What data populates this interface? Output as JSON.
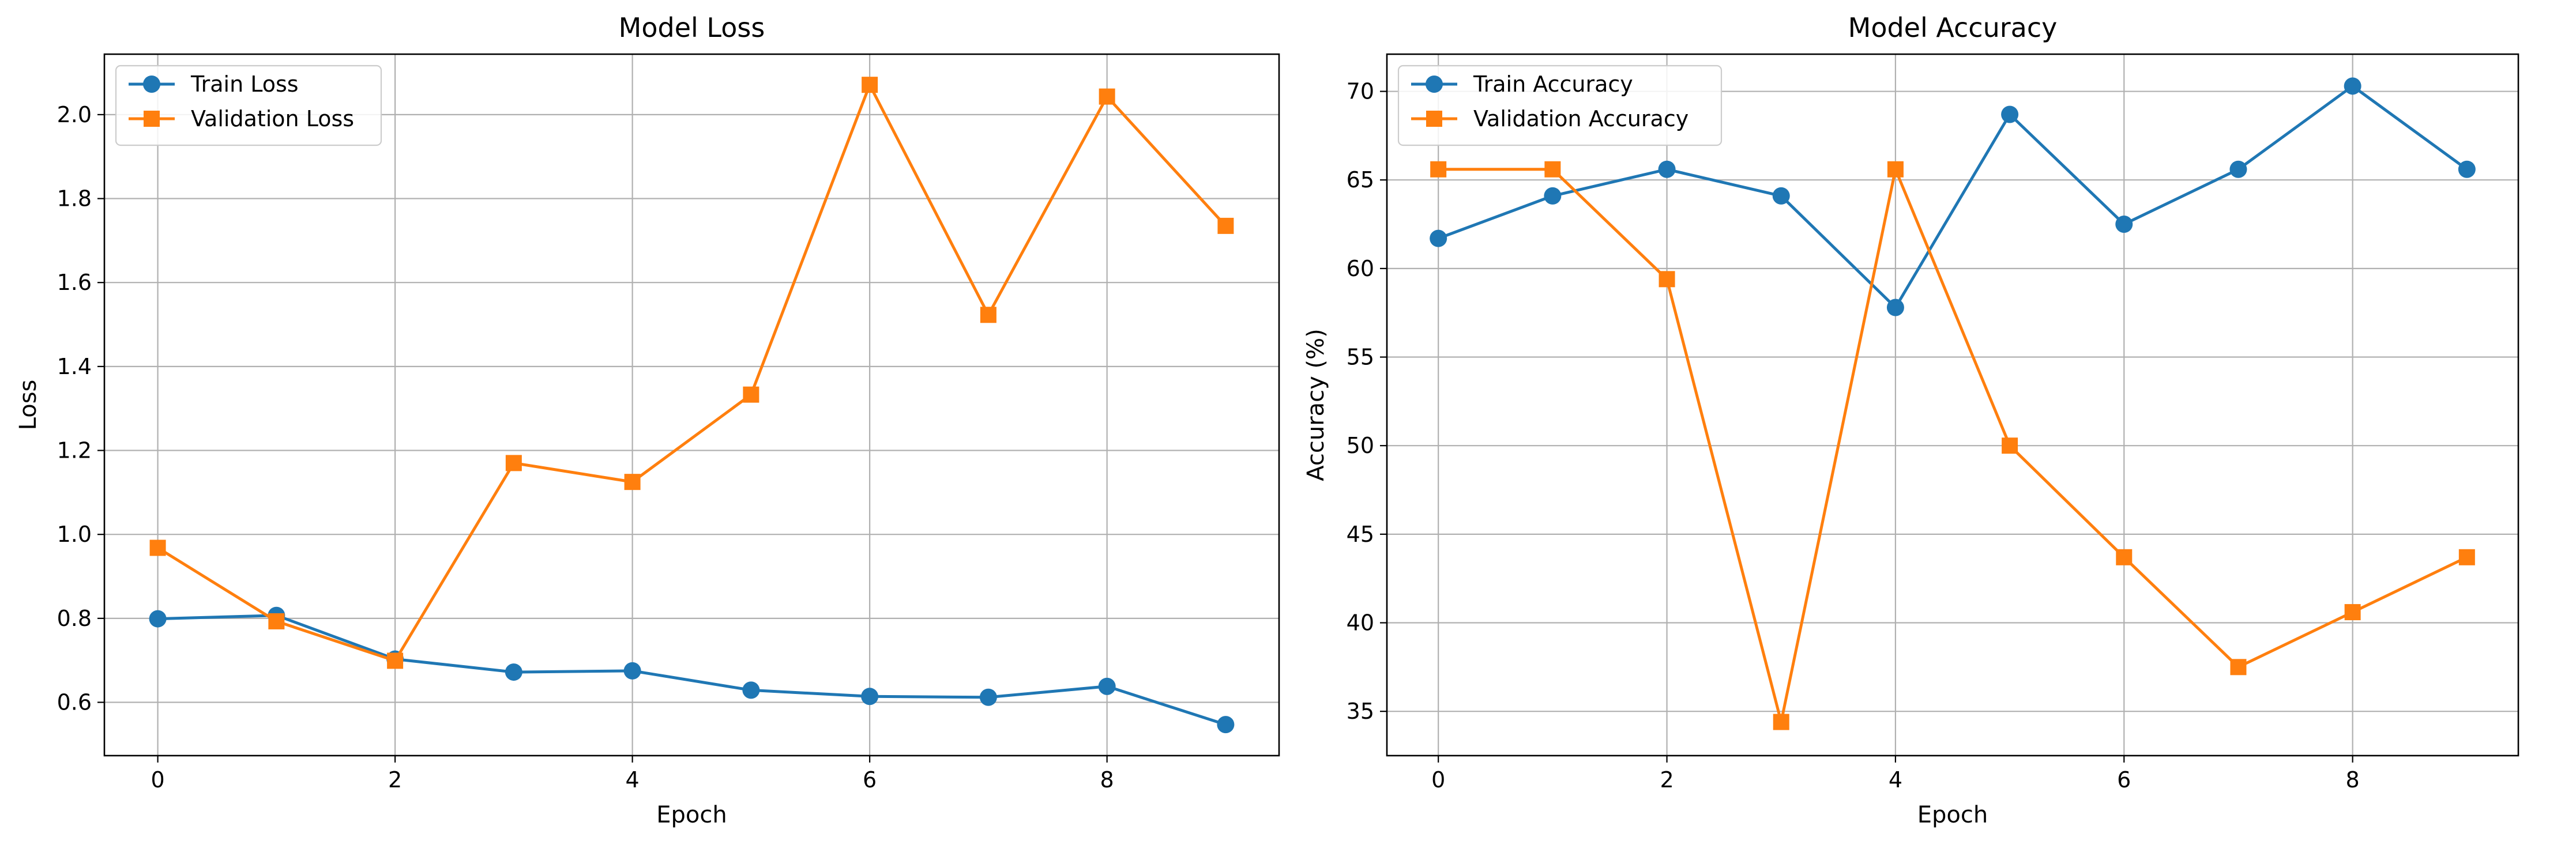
{
  "chart_data": [
    {
      "type": "line",
      "title": "Model Loss",
      "xlabel": "Epoch",
      "ylabel": "Loss",
      "xlim": [
        -0.45,
        9.45
      ],
      "ylim": [
        0.473,
        2.144
      ],
      "xticks": [
        0,
        2,
        4,
        6,
        8
      ],
      "yticks": [
        0.6,
        0.8,
        1.0,
        1.2,
        1.4,
        1.6,
        1.8,
        2.0
      ],
      "ytick_labels": [
        "0.6",
        "0.8",
        "1.0",
        "1.2",
        "1.4",
        "1.6",
        "1.8",
        "2.0"
      ],
      "grid": true,
      "legend": "top-left",
      "x": [
        0,
        1,
        2,
        3,
        4,
        5,
        6,
        7,
        8,
        9
      ],
      "series": [
        {
          "name": "Train Loss",
          "color": "#1f77b4",
          "marker": "circle",
          "values": [
            0.799,
            0.807,
            0.703,
            0.672,
            0.675,
            0.629,
            0.614,
            0.612,
            0.638,
            0.547
          ]
        },
        {
          "name": "Validation Loss",
          "color": "#ff7f0e",
          "marker": "square",
          "values": [
            0.968,
            0.793,
            0.699,
            1.17,
            1.125,
            1.333,
            2.071,
            1.523,
            2.043,
            1.735
          ]
        }
      ]
    },
    {
      "type": "line",
      "title": "Model Accuracy",
      "xlabel": "Epoch",
      "ylabel": "Accuracy (%)",
      "xlim": [
        -0.45,
        9.45
      ],
      "ylim": [
        32.5,
        72.1
      ],
      "xticks": [
        0,
        2,
        4,
        6,
        8
      ],
      "yticks": [
        35,
        40,
        45,
        50,
        55,
        60,
        65,
        70
      ],
      "ytick_labels": [
        "35",
        "40",
        "45",
        "50",
        "55",
        "60",
        "65",
        "70"
      ],
      "grid": true,
      "legend": "top-left",
      "x": [
        0,
        1,
        2,
        3,
        4,
        5,
        6,
        7,
        8,
        9
      ],
      "series": [
        {
          "name": "Train Accuracy",
          "color": "#1f77b4",
          "marker": "circle",
          "values": [
            61.7,
            64.1,
            65.6,
            64.1,
            57.8,
            68.7,
            62.5,
            65.6,
            70.3,
            65.6
          ]
        },
        {
          "name": "Validation Accuracy",
          "color": "#ff7f0e",
          "marker": "square",
          "values": [
            65.6,
            65.6,
            59.4,
            34.4,
            65.6,
            50.0,
            43.7,
            37.5,
            40.6,
            43.7
          ]
        }
      ]
    }
  ]
}
